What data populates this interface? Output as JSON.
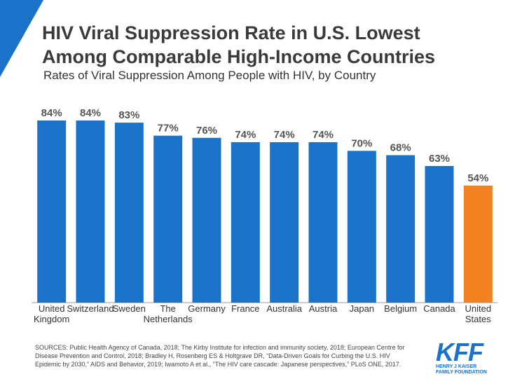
{
  "chart_data": {
    "type": "bar",
    "title": "HIV Viral Suppression Rate in U.S. Lowest Among Comparable High-Income Countries",
    "subtitle": "Rates of Viral Suppression Among People with HIV, by Country",
    "categories": [
      "United Kingdom",
      "Switzerland",
      "Sweden",
      "The Netherlands",
      "Germany",
      "France",
      "Australia",
      "Austria",
      "Japan",
      "Belgium",
      "Canada",
      "United States"
    ],
    "values": [
      84,
      84,
      83,
      77,
      76,
      74,
      74,
      74,
      70,
      68,
      63,
      54
    ],
    "value_labels": [
      "84%",
      "84%",
      "83%",
      "77%",
      "76%",
      "74%",
      "74%",
      "74%",
      "70%",
      "68%",
      "63%",
      "54%"
    ],
    "colors": [
      "#1a73c8",
      "#1a73c8",
      "#1a73c8",
      "#1a73c8",
      "#1a73c8",
      "#1a73c8",
      "#1a73c8",
      "#1a73c8",
      "#1a73c8",
      "#1a73c8",
      "#1a73c8",
      "#f58220"
    ],
    "sources": "SOURCES: Public Health Agency of Canada, 2018; The Kirby Institute for infection and immunity society, 2018; European Centre for Disease Prevention and Control, 2018; Bradley H, Rosenberg ES & Holtgrave DR, “Data-Driven Goals for Curbing the U.S. HIV Epidemic by 2030,” AIDS and Behavior, 2019; Iwamoto A et al., “The HIV care cascade: Japanese perspectives,” PLoS ONE, 2017."
  },
  "logo": {
    "mark": "KFF",
    "subtitle": "HENRY J KAISER FAMILY FOUNDATION"
  }
}
